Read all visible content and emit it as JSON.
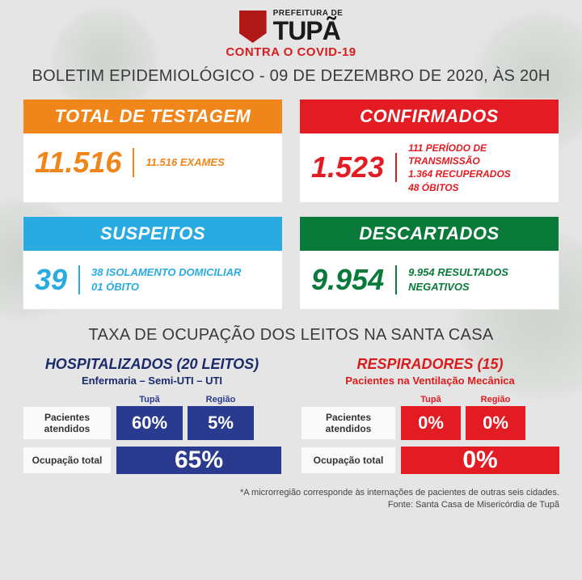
{
  "header": {
    "prefeitura": "PREFEITURA DE",
    "city": "TUPÃ",
    "contra": "CONTRA O COVID-19"
  },
  "boletim_title": "BOLETIM EPIDEMIOLÓGICO - 09 DE DEZEMBRO DE 2020, ÀS 20H",
  "cards": {
    "testagem": {
      "title": "TOTAL DE TESTAGEM",
      "value": "11.516",
      "detail": "11.516 EXAMES",
      "color": "#f08519"
    },
    "confirmados": {
      "title": "CONFIRMADOS",
      "value": "1.523",
      "lines": [
        "111 PERÍODO DE TRANSMISSÃO",
        "1.364 RECUPERADOS",
        "48 ÓBITOS"
      ],
      "color": "#e31b23"
    },
    "suspeitos": {
      "title": "SUSPEITOS",
      "value": "39",
      "lines": [
        "38 ISOLAMENTO DOMICILIAR",
        "01 ÓBITO"
      ],
      "color": "#29abe2"
    },
    "descartados": {
      "title": "DESCARTADOS",
      "value": "9.954",
      "detail": "9.954 RESULTADOS NEGATIVOS",
      "color": "#0a7a3b"
    }
  },
  "occupancy_title": "TAXA DE OCUPAÇÃO DOS LEITOS NA SANTA CASA",
  "hospitalizados": {
    "title": "HOSPITALIZADOS (20 LEITOS)",
    "subtitle": "Enfermaria – Semi-UTI – UTI",
    "col_labels": [
      "Tupã",
      "Região"
    ],
    "row1_label": "Pacientes atendidos",
    "row1_vals": [
      "60%",
      "5%"
    ],
    "row2_label": "Ocupação total",
    "row2_val": "65%",
    "fill_color": "#2a3a8f"
  },
  "respiradores": {
    "title": "RESPIRADORES (15)",
    "subtitle": "Pacientes na Ventilação Mecânica",
    "col_labels": [
      "Tupã",
      "Região"
    ],
    "row1_label": "Pacientes atendidos",
    "row1_vals": [
      "0%",
      "0%"
    ],
    "row2_label": "Ocupação total",
    "row2_val": "0%",
    "fill_color": "#e31b23"
  },
  "footnote1": "*A microrregião corresponde às internações de pacientes de outras seis cidades.",
  "footnote2": "Fonte: Santa Casa de Misericórdia de Tupã"
}
